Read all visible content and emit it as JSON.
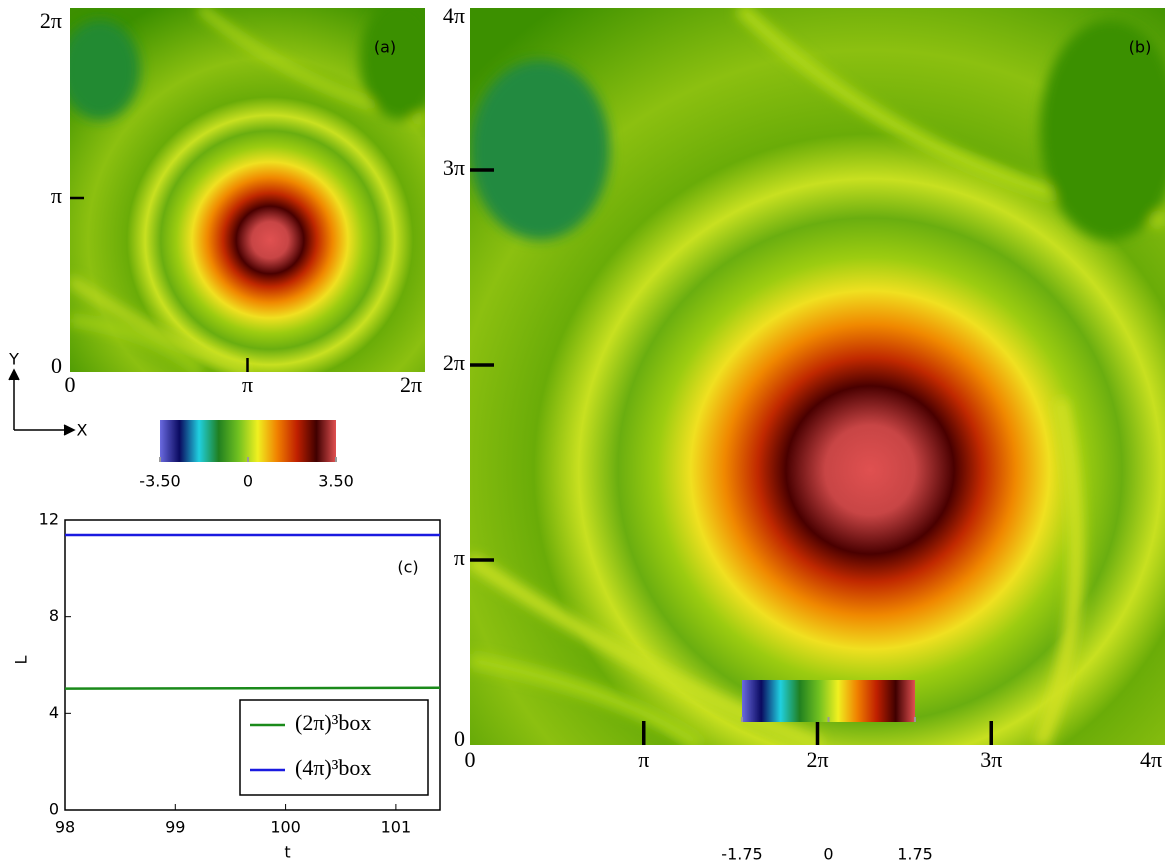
{
  "chart_data": [
    {
      "type": "field",
      "label": "(a)",
      "xlabel": "X",
      "ylabel": "Y",
      "xlim": [
        0,
        6.2832
      ],
      "ylim": [
        0,
        6.2832
      ],
      "xticks": [
        0,
        {
          "value": 3.1416,
          "label": "π"
        },
        {
          "value": 6.2832,
          "label": "2π"
        }
      ],
      "yticks": [
        0,
        {
          "value": 3.1416,
          "label": "π"
        },
        {
          "value": 6.2832,
          "label": "2π"
        }
      ],
      "colorbar": {
        "lim": [
          -3.5,
          3.5
        ],
        "ticks": [
          {
            "value": -3.5,
            "label": "-3.50"
          },
          0,
          {
            "value": 3.5,
            "label": "3.50"
          }
        ],
        "colors": [
          "#6a6ae0",
          "#0a0a60",
          "#20d0e0",
          "#208020",
          "#70c020",
          "#f0f020",
          "#f08000",
          "#c02000",
          "#400000",
          "#e05050"
        ]
      }
    },
    {
      "type": "field",
      "label": "(b)",
      "xlim": [
        0,
        12.5664
      ],
      "ylim": [
        0,
        12.5664
      ],
      "xticks": [
        0,
        {
          "value": 3.1416,
          "label": "π"
        },
        {
          "value": 6.2832,
          "label": "2π"
        },
        {
          "value": 9.4248,
          "label": "3π"
        },
        {
          "value": 12.5664,
          "label": "4π"
        }
      ],
      "yticks": [
        0,
        {
          "value": 3.1416,
          "label": "π"
        },
        {
          "value": 6.2832,
          "label": "2π"
        },
        {
          "value": 9.4248,
          "label": "3π"
        },
        {
          "value": 12.5664,
          "label": "4π"
        }
      ],
      "colorbar": {
        "lim": [
          -1.75,
          1.75
        ],
        "ticks": [
          {
            "value": -1.75,
            "label": "-1.75"
          },
          0,
          {
            "value": 1.75,
            "label": "1.75"
          }
        ],
        "colors": [
          "#6a6ae0",
          "#0a0a60",
          "#20d0e0",
          "#208020",
          "#70c020",
          "#f0f020",
          "#f08000",
          "#c02000",
          "#400000",
          "#e05050"
        ]
      }
    },
    {
      "type": "line",
      "label": "(c)",
      "xlabel": "t",
      "ylabel": "L",
      "x": [
        98,
        101.4
      ],
      "series": [
        {
          "name": "(2π)³box",
          "color": "#1a8a1a",
          "values": [
            5.02,
            5.06
          ]
        },
        {
          "name": "(4π)³box",
          "color": "#1a1ae0",
          "values": [
            11.38,
            11.38
          ]
        }
      ],
      "xlim": [
        98,
        101.4
      ],
      "ylim": [
        0,
        12
      ],
      "xticks": [
        98,
        99,
        100,
        101
      ],
      "yticks": [
        0,
        4,
        8,
        12
      ],
      "legend": "lower right"
    }
  ]
}
